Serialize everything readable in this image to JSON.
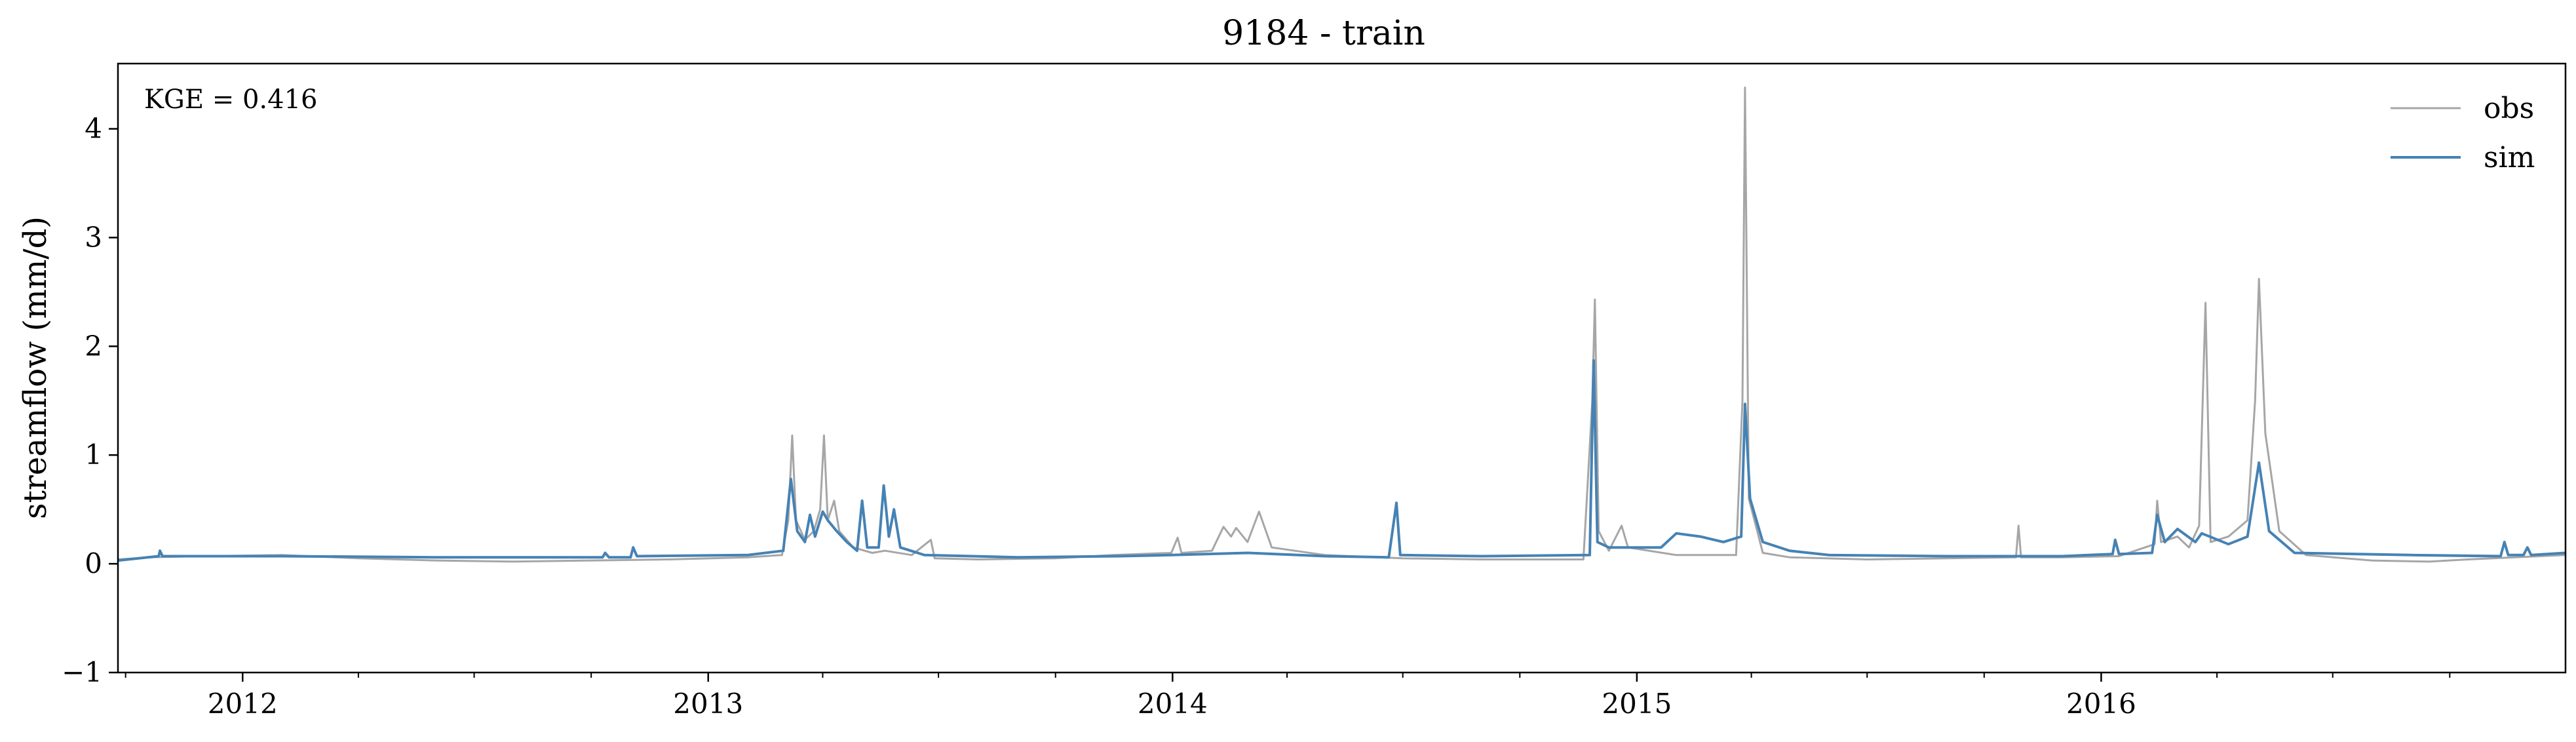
{
  "chart_data": {
    "type": "line",
    "title": "9184 - train",
    "xlabel": "",
    "ylabel": "streamflow (mm/d)",
    "annotation": "KGE = 0.416",
    "xlim": [
      "2011-09-25",
      "2016-12-31"
    ],
    "ylim": [
      -1,
      4.6
    ],
    "y_ticks": [
      -1,
      0,
      1,
      2,
      3,
      4
    ],
    "x_ticks": [
      {
        "date": "2012-01-01",
        "label": "2012"
      },
      {
        "date": "2013-01-01",
        "label": "2013"
      },
      {
        "date": "2014-01-01",
        "label": "2014"
      },
      {
        "date": "2015-01-01",
        "label": "2015"
      },
      {
        "date": "2016-01-01",
        "label": "2016"
      }
    ],
    "legend": {
      "placement": "top-right"
    },
    "series": [
      {
        "name": "obs",
        "color": "#a6a6a6",
        "points": [
          [
            "2011-09-25",
            0.04
          ],
          [
            "2011-10-20",
            0.06
          ],
          [
            "2011-12-01",
            0.07
          ],
          [
            "2012-02-01",
            0.08
          ],
          [
            "2012-04-01",
            0.05
          ],
          [
            "2012-06-01",
            0.03
          ],
          [
            "2012-08-01",
            0.02
          ],
          [
            "2012-10-01",
            0.03
          ],
          [
            "2012-12-01",
            0.04
          ],
          [
            "2013-02-01",
            0.06
          ],
          [
            "2013-02-28",
            0.08
          ],
          [
            "2013-03-05",
            0.4
          ],
          [
            "2013-03-08",
            1.18
          ],
          [
            "2013-03-11",
            0.4
          ],
          [
            "2013-03-18",
            0.22
          ],
          [
            "2013-03-25",
            0.3
          ],
          [
            "2013-03-30",
            0.5
          ],
          [
            "2013-04-02",
            1.18
          ],
          [
            "2013-04-05",
            0.4
          ],
          [
            "2013-04-10",
            0.58
          ],
          [
            "2013-04-14",
            0.3
          ],
          [
            "2013-04-25",
            0.15
          ],
          [
            "2013-05-10",
            0.1
          ],
          [
            "2013-05-20",
            0.12
          ],
          [
            "2013-06-10",
            0.08
          ],
          [
            "2013-06-25",
            0.22
          ],
          [
            "2013-06-28",
            0.05
          ],
          [
            "2013-08-01",
            0.04
          ],
          [
            "2013-10-01",
            0.05
          ],
          [
            "2013-11-15",
            0.08
          ],
          [
            "2013-12-31",
            0.1
          ],
          [
            "2014-01-05",
            0.24
          ],
          [
            "2014-01-08",
            0.1
          ],
          [
            "2014-02-01",
            0.12
          ],
          [
            "2014-02-10",
            0.34
          ],
          [
            "2014-02-16",
            0.25
          ],
          [
            "2014-02-20",
            0.33
          ],
          [
            "2014-03-01",
            0.2
          ],
          [
            "2014-03-10",
            0.48
          ],
          [
            "2014-03-20",
            0.15
          ],
          [
            "2014-05-01",
            0.08
          ],
          [
            "2014-07-01",
            0.05
          ],
          [
            "2014-09-01",
            0.04
          ],
          [
            "2014-11-20",
            0.04
          ],
          [
            "2014-11-27",
            1.5
          ],
          [
            "2014-11-29",
            2.43
          ],
          [
            "2014-12-02",
            0.3
          ],
          [
            "2014-12-10",
            0.12
          ],
          [
            "2014-12-20",
            0.35
          ],
          [
            "2014-12-25",
            0.15
          ],
          [
            "2015-02-01",
            0.08
          ],
          [
            "2015-03-20",
            0.08
          ],
          [
            "2015-03-25",
            1.5
          ],
          [
            "2015-03-27",
            4.38
          ],
          [
            "2015-03-30",
            0.6
          ],
          [
            "2015-04-10",
            0.1
          ],
          [
            "2015-05-01",
            0.06
          ],
          [
            "2015-07-01",
            0.04
          ],
          [
            "2015-09-01",
            0.05
          ],
          [
            "2015-10-26",
            0.06
          ],
          [
            "2015-10-28",
            0.35
          ],
          [
            "2015-10-30",
            0.06
          ],
          [
            "2015-12-01",
            0.06
          ],
          [
            "2016-01-15",
            0.07
          ],
          [
            "2016-02-12",
            0.18
          ],
          [
            "2016-02-14",
            0.58
          ],
          [
            "2016-02-17",
            0.2
          ],
          [
            "2016-03-01",
            0.25
          ],
          [
            "2016-03-10",
            0.15
          ],
          [
            "2016-03-18",
            0.35
          ],
          [
            "2016-03-23",
            2.4
          ],
          [
            "2016-03-27",
            0.2
          ],
          [
            "2016-04-10",
            0.25
          ],
          [
            "2016-04-25",
            0.4
          ],
          [
            "2016-05-01",
            1.5
          ],
          [
            "2016-05-04",
            2.62
          ],
          [
            "2016-05-09",
            1.2
          ],
          [
            "2016-05-20",
            0.3
          ],
          [
            "2016-06-10",
            0.08
          ],
          [
            "2016-08-01",
            0.03
          ],
          [
            "2016-09-15",
            0.02
          ],
          [
            "2016-10-15",
            0.04
          ],
          [
            "2016-12-31",
            0.08
          ]
        ]
      },
      {
        "name": "sim",
        "color": "#4682b4",
        "points": [
          [
            "2011-09-25",
            0.03
          ],
          [
            "2011-10-27",
            0.07
          ],
          [
            "2011-10-28",
            0.12
          ],
          [
            "2011-10-30",
            0.07
          ],
          [
            "2012-02-01",
            0.07
          ],
          [
            "2012-06-01",
            0.06
          ],
          [
            "2012-09-01",
            0.06
          ],
          [
            "2012-10-10",
            0.06
          ],
          [
            "2012-10-12",
            0.1
          ],
          [
            "2012-10-15",
            0.06
          ],
          [
            "2012-11-01",
            0.06
          ],
          [
            "2012-11-03",
            0.15
          ],
          [
            "2012-11-06",
            0.07
          ],
          [
            "2013-02-01",
            0.08
          ],
          [
            "2013-03-01",
            0.12
          ],
          [
            "2013-03-07",
            0.78
          ],
          [
            "2013-03-12",
            0.3
          ],
          [
            "2013-03-18",
            0.2
          ],
          [
            "2013-03-22",
            0.45
          ],
          [
            "2013-03-26",
            0.25
          ],
          [
            "2013-04-01",
            0.48
          ],
          [
            "2013-04-05",
            0.4
          ],
          [
            "2013-04-12",
            0.3
          ],
          [
            "2013-04-20",
            0.2
          ],
          [
            "2013-04-28",
            0.12
          ],
          [
            "2013-05-02",
            0.58
          ],
          [
            "2013-05-06",
            0.15
          ],
          [
            "2013-05-15",
            0.15
          ],
          [
            "2013-05-19",
            0.72
          ],
          [
            "2013-05-23",
            0.25
          ],
          [
            "2013-05-27",
            0.5
          ],
          [
            "2013-06-01",
            0.15
          ],
          [
            "2013-06-20",
            0.08
          ],
          [
            "2013-09-01",
            0.06
          ],
          [
            "2013-11-20",
            0.07
          ],
          [
            "2013-12-31",
            0.08
          ],
          [
            "2014-03-01",
            0.1
          ],
          [
            "2014-05-01",
            0.07
          ],
          [
            "2014-06-20",
            0.06
          ],
          [
            "2014-06-26",
            0.56
          ],
          [
            "2014-06-29",
            0.08
          ],
          [
            "2014-09-01",
            0.07
          ],
          [
            "2014-11-25",
            0.08
          ],
          [
            "2014-11-28",
            1.87
          ],
          [
            "2014-12-01",
            0.2
          ],
          [
            "2014-12-10",
            0.15
          ],
          [
            "2015-01-20",
            0.15
          ],
          [
            "2015-02-01",
            0.28
          ],
          [
            "2015-02-20",
            0.25
          ],
          [
            "2015-03-10",
            0.2
          ],
          [
            "2015-03-24",
            0.25
          ],
          [
            "2015-03-27",
            1.47
          ],
          [
            "2015-03-31",
            0.6
          ],
          [
            "2015-04-10",
            0.2
          ],
          [
            "2015-05-01",
            0.12
          ],
          [
            "2015-06-01",
            0.08
          ],
          [
            "2015-09-01",
            0.07
          ],
          [
            "2015-12-01",
            0.07
          ],
          [
            "2016-01-10",
            0.09
          ],
          [
            "2016-01-12",
            0.22
          ],
          [
            "2016-01-15",
            0.09
          ],
          [
            "2016-02-10",
            0.1
          ],
          [
            "2016-02-14",
            0.45
          ],
          [
            "2016-02-20",
            0.2
          ],
          [
            "2016-03-01",
            0.32
          ],
          [
            "2016-03-15",
            0.2
          ],
          [
            "2016-03-20",
            0.28
          ],
          [
            "2016-04-10",
            0.18
          ],
          [
            "2016-04-25",
            0.25
          ],
          [
            "2016-05-04",
            0.93
          ],
          [
            "2016-05-12",
            0.3
          ],
          [
            "2016-06-01",
            0.1
          ],
          [
            "2016-09-01",
            0.08
          ],
          [
            "2016-11-10",
            0.07
          ],
          [
            "2016-11-13",
            0.2
          ],
          [
            "2016-11-16",
            0.08
          ],
          [
            "2016-11-28",
            0.08
          ],
          [
            "2016-12-01",
            0.15
          ],
          [
            "2016-12-04",
            0.08
          ],
          [
            "2016-12-31",
            0.1
          ]
        ]
      }
    ]
  }
}
